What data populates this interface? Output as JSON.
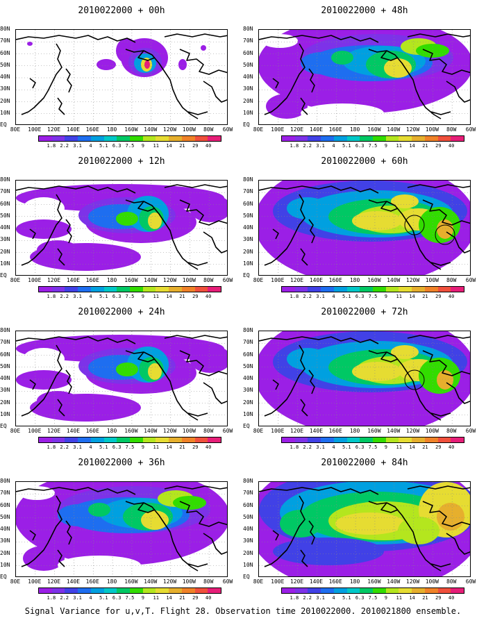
{
  "caption": "Signal Variance for u,v,T. Flight 28. Observation time 2010022000. 2010021800 ensemble.",
  "lat_labels": [
    "80N",
    "70N",
    "60N",
    "50N",
    "40N",
    "30N",
    "20N",
    "10N",
    "EQ"
  ],
  "lon_labels": [
    "80E",
    "100E",
    "120E",
    "140E",
    "160E",
    "180",
    "160W",
    "140W",
    "120W",
    "100W",
    "80W",
    "60W"
  ],
  "colorbar": {
    "labels": [
      "1.8",
      "2.2",
      "3.1",
      "4",
      "5.1",
      "6.3",
      "7.5",
      "9",
      "11",
      "14",
      "21",
      "29",
      "40"
    ],
    "colors": [
      "#9b1fe6",
      "#7d32e8",
      "#4141e6",
      "#1e6ef0",
      "#00a0e0",
      "#00c8c8",
      "#00c864",
      "#32dc00",
      "#b4e61e",
      "#e6dc32",
      "#e6af2d",
      "#f08228",
      "#f0503c",
      "#e61e78"
    ]
  },
  "panels": [
    {
      "title": "2010022000 + 00h",
      "col": 0,
      "row": 0,
      "level": 0
    },
    {
      "title": "2010022000 + 48h",
      "col": 1,
      "row": 0,
      "level": 2
    },
    {
      "title": "2010022000 + 12h",
      "col": 0,
      "row": 1,
      "level": 1
    },
    {
      "title": "2010022000 + 60h",
      "col": 1,
      "row": 1,
      "level": 3
    },
    {
      "title": "2010022000 + 24h",
      "col": 0,
      "row": 2,
      "level": 1
    },
    {
      "title": "2010022000 + 72h",
      "col": 1,
      "row": 2,
      "level": 3
    },
    {
      "title": "2010022000 + 36h",
      "col": 0,
      "row": 3,
      "level": 2
    },
    {
      "title": "2010022000 + 84h",
      "col": 1,
      "row": 3,
      "level": 4
    }
  ]
}
